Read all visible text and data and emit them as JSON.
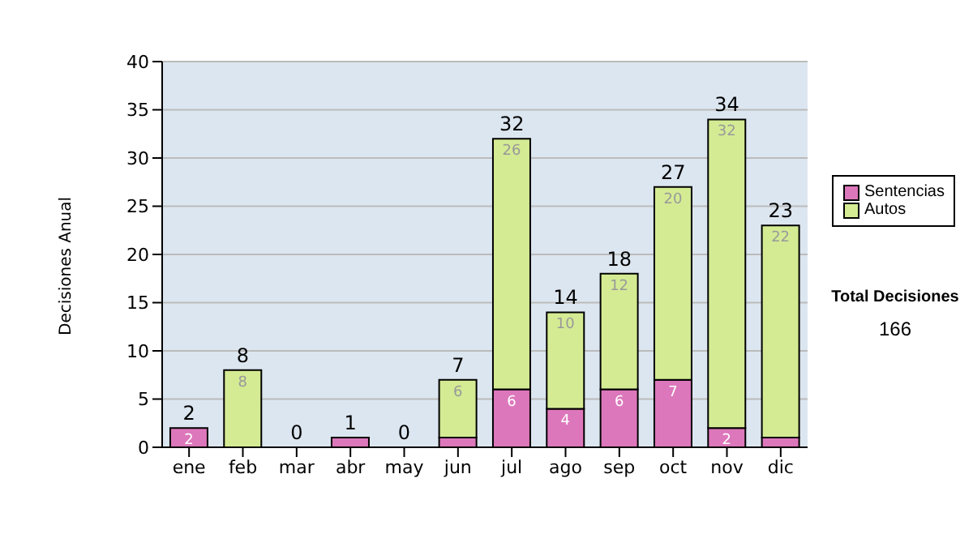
{
  "chart_data": {
    "type": "bar",
    "stacked": true,
    "ylabel": "Decisiones Anual",
    "categories": [
      "ene",
      "feb",
      "mar",
      "abr",
      "may",
      "jun",
      "jul",
      "ago",
      "sep",
      "oct",
      "nov",
      "dic"
    ],
    "series": [
      {
        "name": "Sentencias",
        "color": "#dd77bb",
        "values": [
          2,
          0,
          0,
          1,
          0,
          1,
          6,
          4,
          6,
          7,
          2,
          1
        ],
        "value_labels": [
          "2",
          null,
          null,
          null,
          null,
          null,
          "6",
          "4",
          "6",
          "7",
          "2",
          null
        ]
      },
      {
        "name": "Autos",
        "color": "#d4eb94",
        "values": [
          0,
          8,
          0,
          0,
          0,
          6,
          26,
          10,
          12,
          20,
          32,
          22
        ],
        "value_labels": [
          null,
          "8",
          null,
          null,
          null,
          "6",
          "26",
          "10",
          "12",
          "20",
          "32",
          "22"
        ]
      }
    ],
    "totals": [
      "2",
      "8",
      "0",
      "1",
      "0",
      "7",
      "32",
      "14",
      "18",
      "27",
      "34",
      "23"
    ],
    "ylim": [
      0,
      40
    ],
    "yticks": [
      0,
      5,
      10,
      15,
      20,
      25,
      30,
      35,
      40
    ],
    "grid": "y",
    "legend": "right",
    "annotations": [
      "Total Decisiones",
      "166"
    ]
  }
}
